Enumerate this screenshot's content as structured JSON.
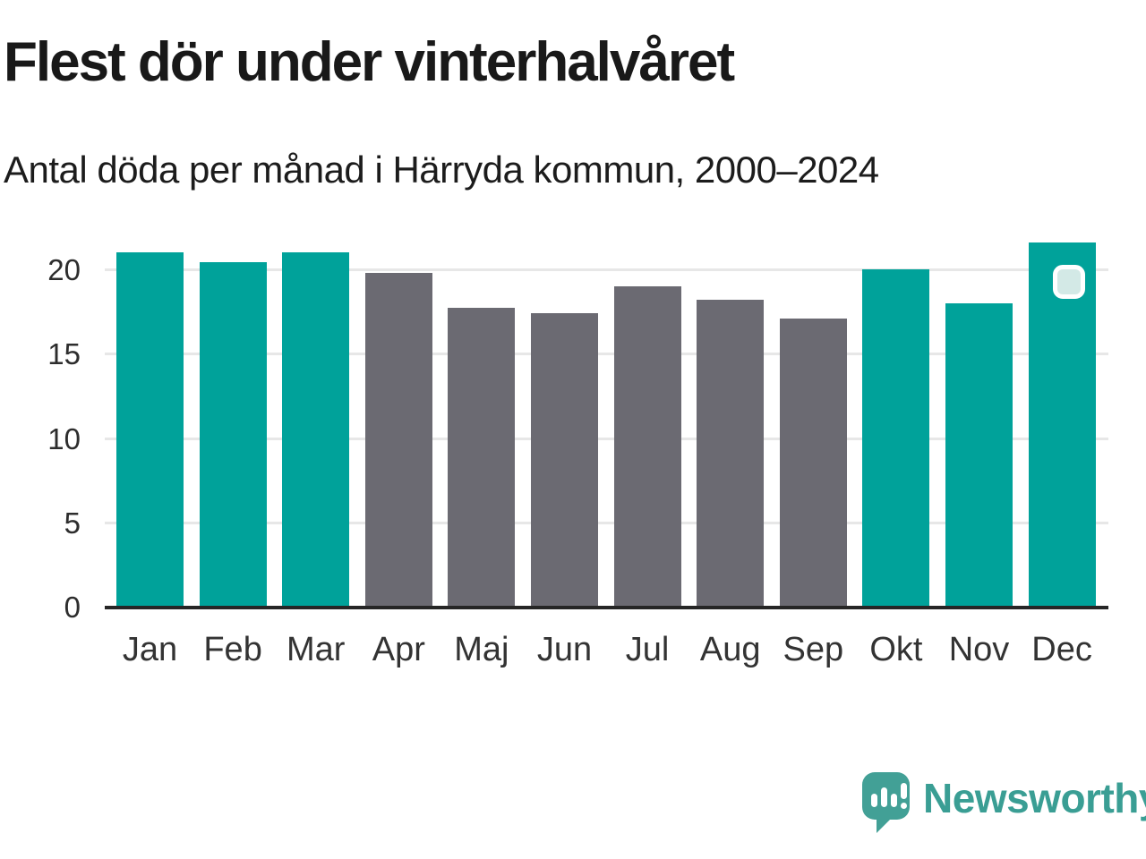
{
  "header": {
    "title": "Flest dör under vinterhalvåret",
    "subtitle": "Antal döda per månad i Härryda kommun, 2000–2024"
  },
  "chart_data": {
    "type": "bar",
    "title": "Flest dör under vinterhalvåret",
    "subtitle": "Antal döda per månad i Härryda kommun, 2000–2024",
    "categories": [
      "Jan",
      "Feb",
      "Mar",
      "Apr",
      "Maj",
      "Jun",
      "Jul",
      "Aug",
      "Sep",
      "Okt",
      "Nov",
      "Dec"
    ],
    "values": [
      21.0,
      20.4,
      21.0,
      19.8,
      17.7,
      17.4,
      19.0,
      18.2,
      17.1,
      20.0,
      18.0,
      21.6
    ],
    "bar_colors": [
      "#00a29a",
      "#00a29a",
      "#00a29a",
      "#6b6a72",
      "#6b6a72",
      "#6b6a72",
      "#6b6a72",
      "#6b6a72",
      "#6b6a72",
      "#00a29a",
      "#00a29a",
      "#00a29a"
    ],
    "color_meaning": {
      "winter_half_year": "#00a29a",
      "summer_half_year": "#6b6a72"
    },
    "xlabel": "",
    "ylabel": "",
    "yticks": [
      0,
      5,
      10,
      15,
      20
    ],
    "ylim": [
      0,
      21.8
    ],
    "grid": true,
    "legend_position": "none",
    "highlight": {
      "month": "Dec",
      "marker": "rounded-square"
    }
  },
  "branding": {
    "logo_text": "Newsworthy",
    "logo_icon": "speech-bubble-bar-chart",
    "brand_color": "#3a9e94"
  }
}
